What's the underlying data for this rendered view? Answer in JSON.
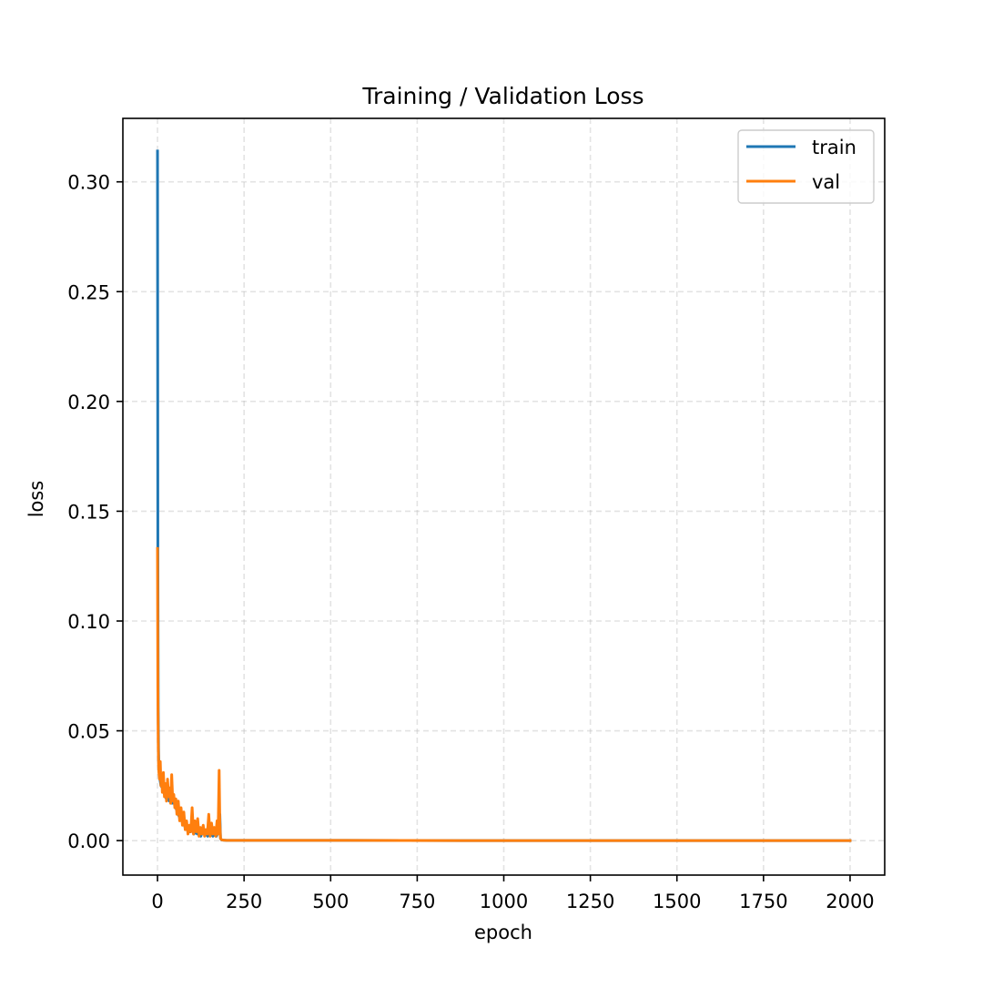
{
  "chart_data": {
    "type": "line",
    "title": "Training / Validation Loss",
    "xlabel": "epoch",
    "ylabel": "loss",
    "xlim": [
      -100,
      2100
    ],
    "ylim": [
      -0.0157,
      0.3289
    ],
    "xticks": [
      0,
      250,
      500,
      750,
      1000,
      1250,
      1500,
      1750,
      2000
    ],
    "xtick_labels": [
      "0",
      "250",
      "500",
      "750",
      "1000",
      "1250",
      "1500",
      "1750",
      "2000"
    ],
    "yticks": [
      0.0,
      0.05,
      0.1,
      0.15,
      0.2,
      0.25,
      0.3
    ],
    "ytick_labels": [
      "0.00",
      "0.05",
      "0.10",
      "0.15",
      "0.20",
      "0.25",
      "0.30"
    ],
    "grid": true,
    "legend_position": "top-right",
    "series": [
      {
        "name": "train",
        "color": "#1f77b4",
        "x": [
          0,
          1,
          2,
          3,
          4,
          6,
          8,
          10,
          14,
          18,
          22,
          26,
          30,
          34,
          38,
          42,
          46,
          50,
          55,
          60,
          65,
          70,
          75,
          80,
          85,
          90,
          95,
          100,
          105,
          110,
          115,
          120,
          125,
          130,
          135,
          140,
          145,
          150,
          155,
          160,
          165,
          170,
          175,
          178,
          180,
          182,
          185,
          190,
          200,
          300,
          500,
          1000,
          1500,
          2000
        ],
        "values": [
          0.314,
          0.133,
          0.06,
          0.042,
          0.033,
          0.029,
          0.027,
          0.025,
          0.024,
          0.022,
          0.02,
          0.019,
          0.021,
          0.018,
          0.02,
          0.017,
          0.019,
          0.016,
          0.014,
          0.012,
          0.01,
          0.009,
          0.008,
          0.006,
          0.005,
          0.004,
          0.004,
          0.005,
          0.003,
          0.004,
          0.003,
          0.003,
          0.002,
          0.004,
          0.003,
          0.003,
          0.002,
          0.004,
          0.003,
          0.002,
          0.003,
          0.002,
          0.004,
          0.009,
          0.012,
          0.001,
          0.0003,
          0.0002,
          0.0001,
          0.0001,
          0.0001,
          0.0,
          0.0,
          0.0
        ]
      },
      {
        "name": "val",
        "color": "#ff7f0e",
        "x": [
          0,
          1,
          2,
          3,
          4,
          6,
          8,
          10,
          12,
          14,
          17,
          20,
          23,
          26,
          29,
          32,
          35,
          38,
          41,
          44,
          47,
          50,
          53,
          56,
          60,
          64,
          68,
          72,
          76,
          80,
          84,
          88,
          92,
          96,
          100,
          104,
          108,
          112,
          116,
          120,
          124,
          128,
          132,
          136,
          140,
          144,
          148,
          152,
          156,
          160,
          164,
          168,
          172,
          175,
          178,
          180,
          182,
          185,
          190,
          200,
          300,
          500,
          1000,
          1500,
          2000
        ],
        "values": [
          0.133,
          0.07,
          0.045,
          0.035,
          0.031,
          0.028,
          0.036,
          0.025,
          0.03,
          0.022,
          0.031,
          0.02,
          0.026,
          0.018,
          0.028,
          0.02,
          0.024,
          0.017,
          0.03,
          0.018,
          0.021,
          0.015,
          0.019,
          0.012,
          0.018,
          0.009,
          0.015,
          0.007,
          0.013,
          0.005,
          0.009,
          0.003,
          0.007,
          0.004,
          0.015,
          0.003,
          0.009,
          0.004,
          0.01,
          0.002,
          0.006,
          0.003,
          0.007,
          0.002,
          0.005,
          0.003,
          0.012,
          0.002,
          0.008,
          0.003,
          0.006,
          0.002,
          0.009,
          0.003,
          0.032,
          0.008,
          0.001,
          0.0004,
          0.0002,
          0.0001,
          0.0001,
          0.0001,
          0.0,
          0.0,
          0.0
        ]
      }
    ]
  }
}
